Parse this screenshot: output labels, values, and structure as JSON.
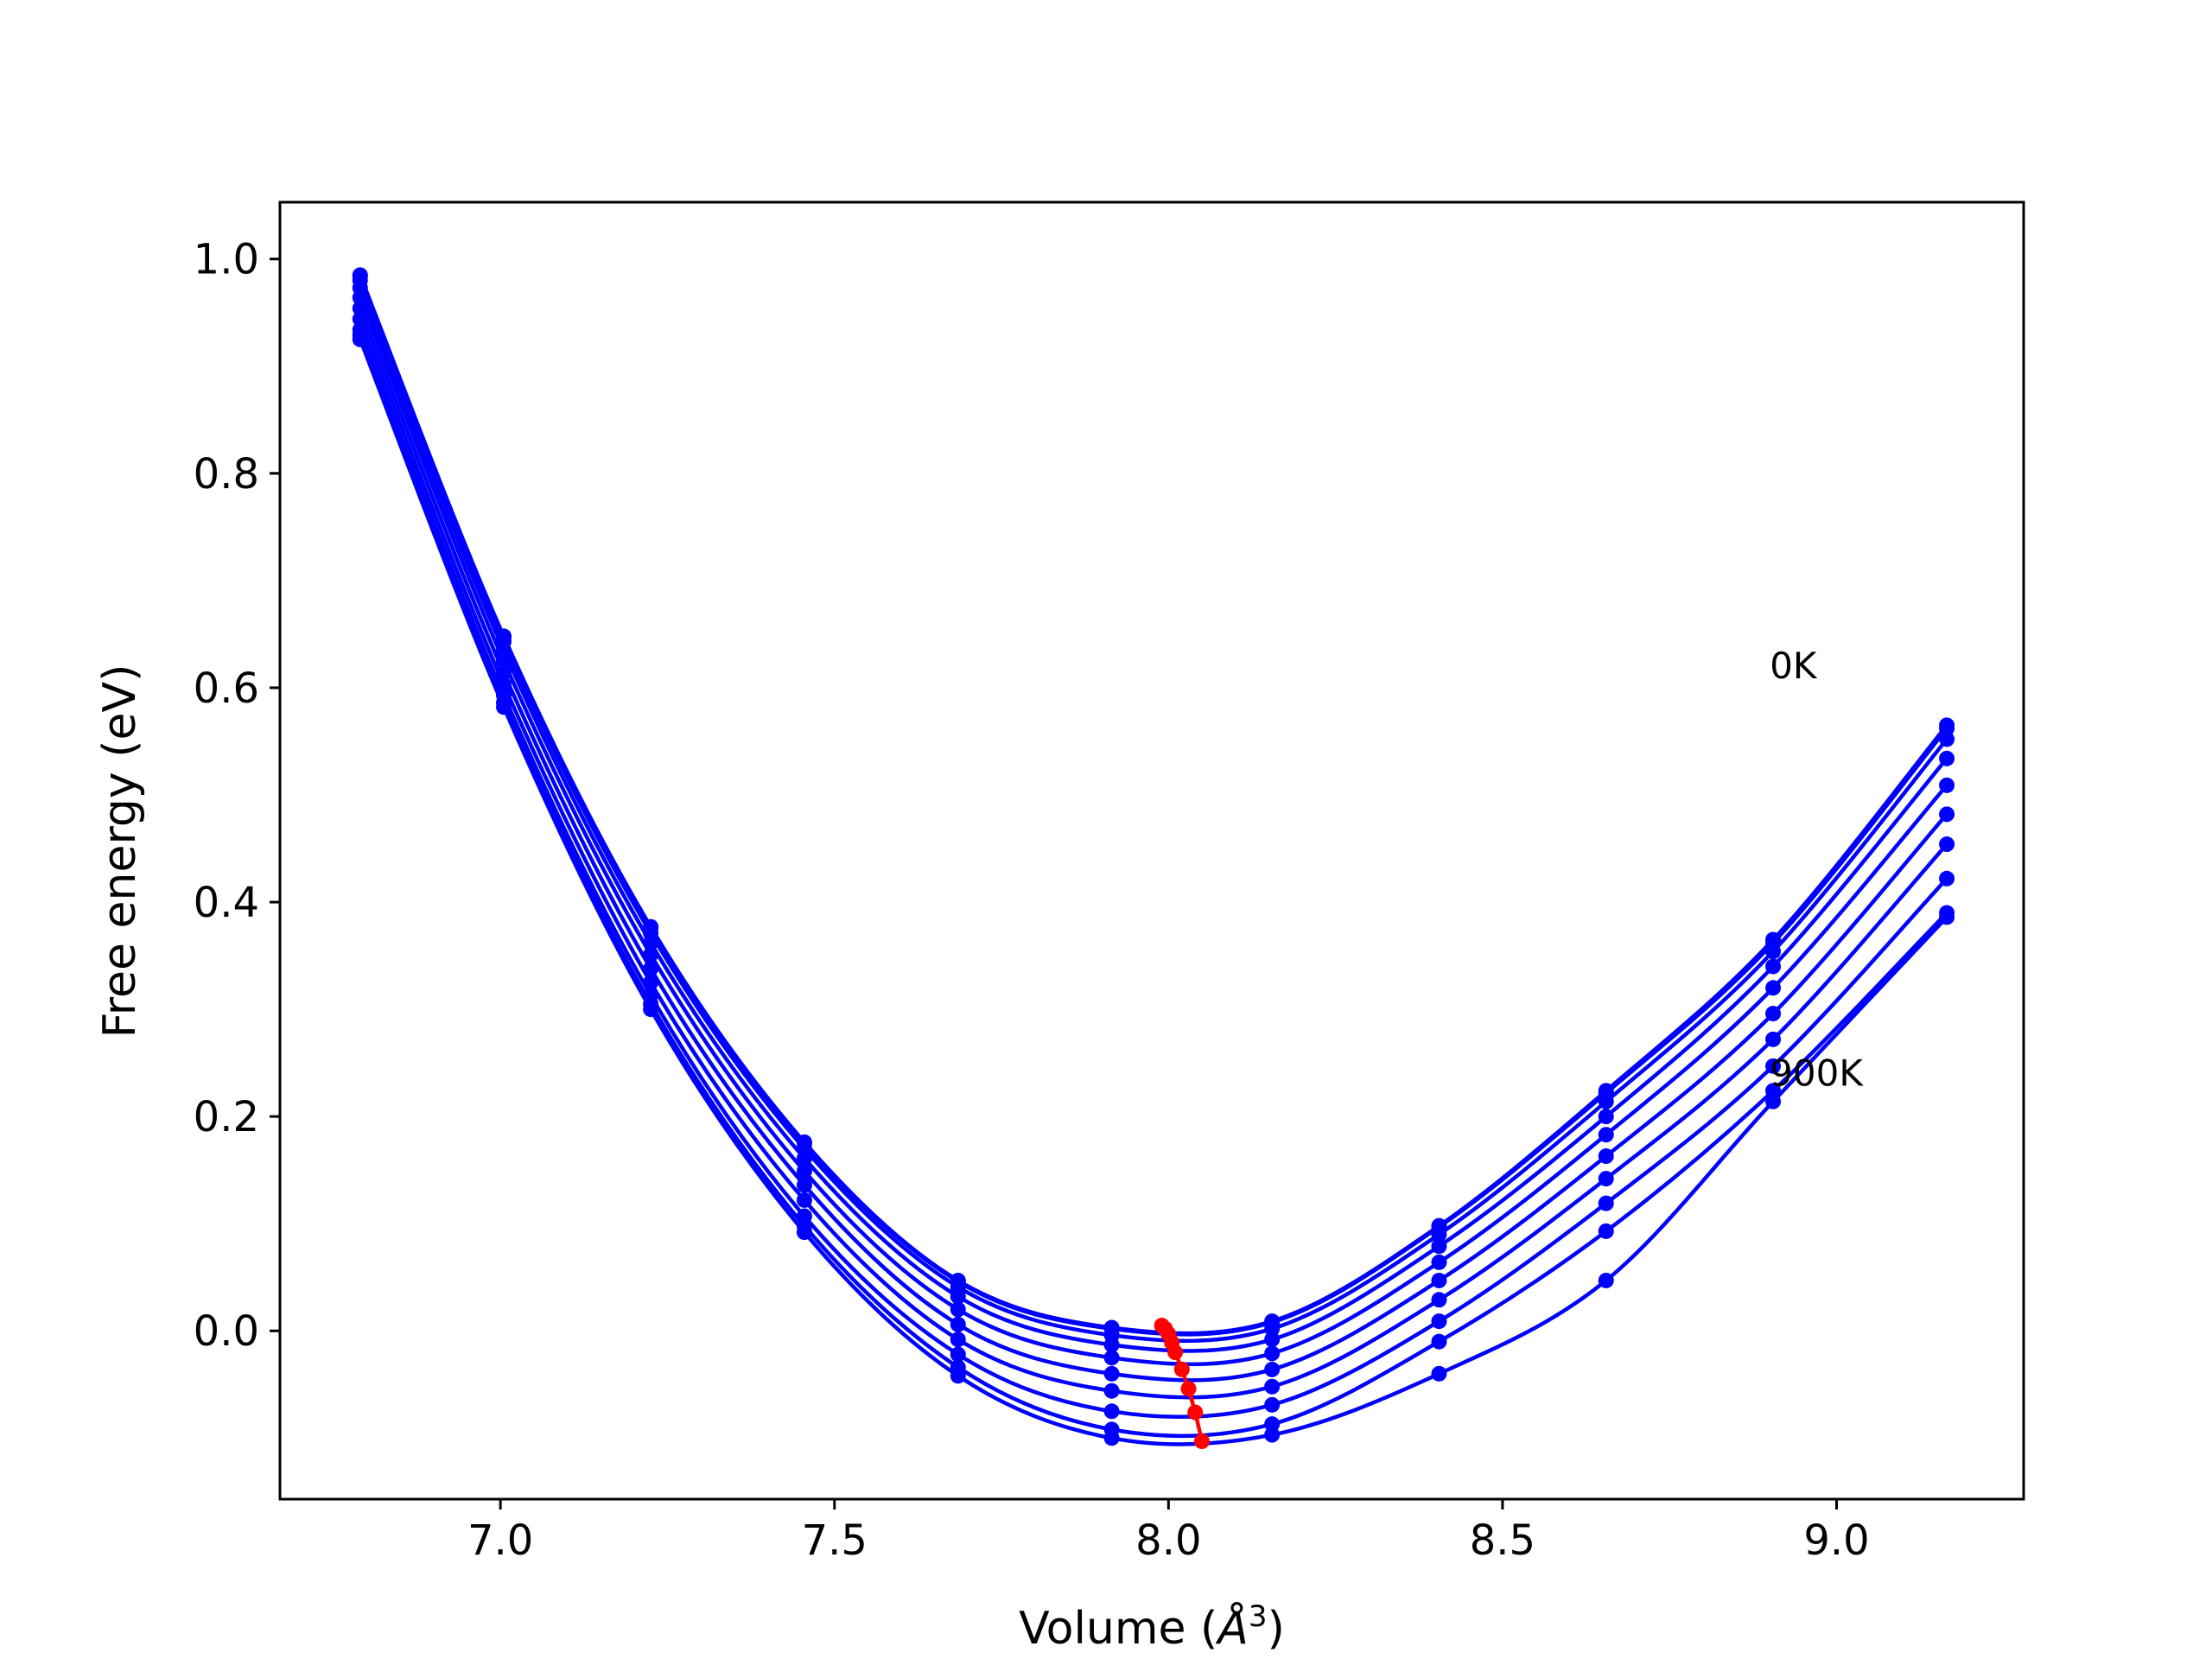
{
  "chart_data": {
    "type": "line",
    "title": "",
    "xlabel": "Volume (Å³)",
    "xlabel_parts": {
      "text": "Volume (",
      "sym": "Å",
      "sup": "3",
      "close": ")"
    },
    "ylabel": "Free energy (eV)",
    "xlim": [
      6.67,
      9.28
    ],
    "ylim": [
      -0.157,
      1.053
    ],
    "x_ticks": [
      7.0,
      7.5,
      8.0,
      8.5,
      9.0
    ],
    "x_tick_labels": [
      "7.0",
      "7.5",
      "8.0",
      "8.5",
      "9.0"
    ],
    "y_ticks": [
      0.0,
      0.2,
      0.4,
      0.6,
      0.8,
      1.0
    ],
    "y_tick_labels": [
      "0.0",
      "0.2",
      "0.4",
      "0.6",
      "0.8",
      "1.0"
    ],
    "grid": false,
    "legend": "none",
    "annotations": [
      {
        "text": "0K",
        "x": 8.9,
        "y": 0.62
      },
      {
        "text": "900K",
        "x": 8.9,
        "y": 0.24
      }
    ],
    "volumes": [
      6.79,
      7.005,
      7.225,
      7.455,
      7.685,
      7.915,
      8.155,
      8.405,
      8.655,
      8.905,
      9.165
    ],
    "series": [
      {
        "name": "0K",
        "color": "#0000ff",
        "values": [
          0.985,
          0.648,
          0.377,
          0.176,
          0.047,
          0.003,
          0.009,
          0.098,
          0.224,
          0.365,
          0.565
        ]
      },
      {
        "name": "100K",
        "color": "#0000ff",
        "values": [
          0.984,
          0.647,
          0.376,
          0.175,
          0.046,
          0.002,
          0.008,
          0.097,
          0.222,
          0.362,
          0.562
        ]
      },
      {
        "name": "200K",
        "color": "#0000ff",
        "values": [
          0.98,
          0.643,
          0.371,
          0.17,
          0.041,
          -0.004,
          0.002,
          0.09,
          0.214,
          0.354,
          0.552
        ]
      },
      {
        "name": "300K",
        "color": "#0000ff",
        "values": [
          0.973,
          0.635,
          0.362,
          0.161,
          0.032,
          -0.013,
          -0.008,
          0.079,
          0.2,
          0.34,
          0.534
        ]
      },
      {
        "name": "400K",
        "color": "#0000ff",
        "values": [
          0.964,
          0.625,
          0.351,
          0.149,
          0.02,
          -0.025,
          -0.021,
          0.064,
          0.183,
          0.32,
          0.509
        ]
      },
      {
        "name": "500K",
        "color": "#0000ff",
        "values": [
          0.954,
          0.614,
          0.338,
          0.136,
          0.006,
          -0.04,
          -0.036,
          0.047,
          0.163,
          0.296,
          0.482
        ]
      },
      {
        "name": "600K",
        "color": "#0000ff",
        "values": [
          0.944,
          0.603,
          0.325,
          0.122,
          -0.008,
          -0.056,
          -0.052,
          0.029,
          0.142,
          0.272,
          0.454
        ]
      },
      {
        "name": "700K",
        "color": "#0000ff",
        "values": [
          0.934,
          0.593,
          0.313,
          0.107,
          -0.022,
          -0.075,
          -0.069,
          0.009,
          0.119,
          0.247,
          0.422
        ]
      },
      {
        "name": "800K",
        "color": "#0000ff",
        "values": [
          0.929,
          0.586,
          0.305,
          0.098,
          -0.034,
          -0.092,
          -0.087,
          -0.01,
          0.093,
          0.224,
          0.39
        ]
      },
      {
        "name": "900K",
        "color": "#0000ff",
        "values": [
          0.925,
          0.582,
          0.3,
          0.092,
          -0.042,
          -0.1,
          -0.097,
          -0.04,
          0.047,
          0.214,
          0.386
        ]
      }
    ],
    "minima": {
      "color": "#ff0000",
      "points": [
        {
          "x": 7.99,
          "y": 0.005
        },
        {
          "x": 7.995,
          "y": 0.002
        },
        {
          "x": 8.0,
          "y": -0.003
        },
        {
          "x": 8.005,
          "y": -0.011
        },
        {
          "x": 8.01,
          "y": -0.02
        },
        {
          "x": 8.02,
          "y": -0.036
        },
        {
          "x": 8.03,
          "y": -0.054
        },
        {
          "x": 8.04,
          "y": -0.076
        },
        {
          "x": 8.05,
          "y": -0.103
        }
      ]
    }
  }
}
